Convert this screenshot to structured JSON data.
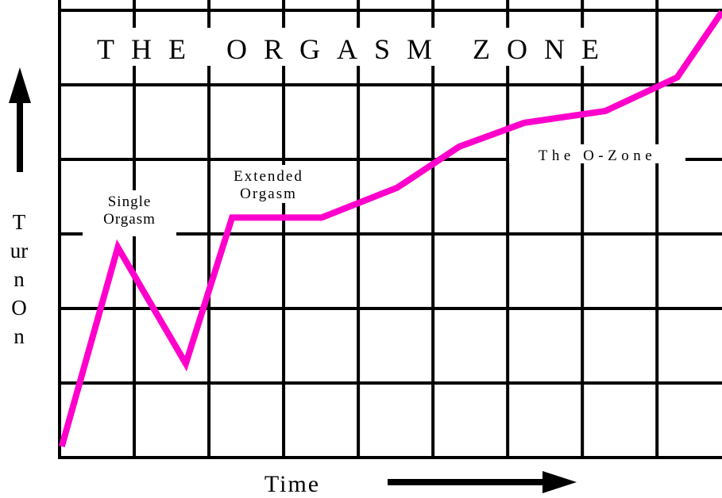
{
  "chart_data": {
    "type": "line",
    "title": "THE ORGASM ZONE",
    "x_label": "Time",
    "y_label": "Turn On",
    "x": [
      0.03,
      0.78,
      1.69,
      2.31,
      3.51,
      4.52,
      5.35,
      6.22,
      7.31,
      8.27,
      8.87
    ],
    "series": [
      {
        "name": null,
        "color": "#ff00cc",
        "values": [
          0.15,
          2.82,
          1.26,
          3.22,
          3.22,
          3.62,
          4.17,
          4.49,
          4.65,
          5.1,
          5.98
        ]
      }
    ],
    "xlim": [
      0,
      8.87
    ],
    "ylim": [
      0,
      6
    ],
    "xticks": [
      0,
      1,
      2,
      3,
      4,
      5,
      6,
      7,
      8
    ],
    "yticks": [
      0,
      1,
      2,
      3,
      4,
      5,
      6
    ],
    "grid": true,
    "annotations": [
      {
        "lines": [
          "Single",
          "Orgasm"
        ]
      },
      {
        "lines": [
          "Extended",
          "Orgasm"
        ]
      },
      {
        "lines": [
          "The O-Zone"
        ]
      }
    ]
  }
}
